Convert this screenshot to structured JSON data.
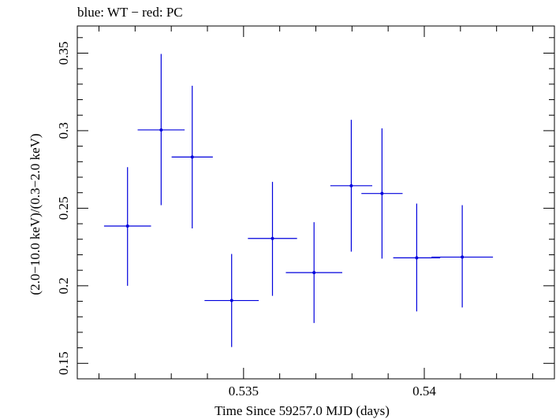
{
  "chart_data": {
    "type": "scatter",
    "title": "blue: WT − red: PC",
    "xlabel": "Time Since 59257.0 MJD (days)",
    "ylabel": "(2.0−10.0 keV)/(0.3−2.0 keV)",
    "xlim": [
      0.5304,
      0.5436
    ],
    "ylim": [
      0.14,
      0.3675
    ],
    "xticks": [
      {
        "value": 0.535,
        "label": "0.535"
      },
      {
        "value": 0.54,
        "label": "0.54"
      }
    ],
    "yticks": [
      {
        "value": 0.15,
        "label": "0.15"
      },
      {
        "value": 0.2,
        "label": "0.2"
      },
      {
        "value": 0.25,
        "label": "0.25"
      },
      {
        "value": 0.3,
        "label": "0.3"
      },
      {
        "value": 0.35,
        "label": "0.35"
      }
    ],
    "series": [
      {
        "name": "WT",
        "color": "#0000dd",
        "points": [
          {
            "x": 0.53179,
            "xerr": 0.00065,
            "y": 0.2385,
            "yerr_low": 0.0385,
            "yerr_high": 0.038
          },
          {
            "x": 0.53272,
            "xerr": 0.00065,
            "y": 0.3005,
            "yerr_low": 0.0485,
            "yerr_high": 0.049
          },
          {
            "x": 0.53358,
            "xerr": 0.00057,
            "y": 0.283,
            "yerr_low": 0.046,
            "yerr_high": 0.046
          },
          {
            "x": 0.53467,
            "xerr": 0.00075,
            "y": 0.1905,
            "yerr_low": 0.03,
            "yerr_high": 0.03
          },
          {
            "x": 0.5358,
            "xerr": 0.00068,
            "y": 0.2305,
            "yerr_low": 0.037,
            "yerr_high": 0.0365
          },
          {
            "x": 0.53695,
            "xerr": 0.00078,
            "y": 0.2085,
            "yerr_low": 0.0325,
            "yerr_high": 0.0325
          },
          {
            "x": 0.53798,
            "xerr": 0.00058,
            "y": 0.2645,
            "yerr_low": 0.0425,
            "yerr_high": 0.0425
          },
          {
            "x": 0.53883,
            "xerr": 0.00057,
            "y": 0.2595,
            "yerr_low": 0.042,
            "yerr_high": 0.042
          },
          {
            "x": 0.53979,
            "xerr": 0.00065,
            "y": 0.218,
            "yerr_low": 0.0345,
            "yerr_high": 0.035
          },
          {
            "x": 0.54105,
            "xerr": 0.00085,
            "y": 0.2185,
            "yerr_low": 0.0325,
            "yerr_high": 0.0335
          }
        ]
      },
      {
        "name": "PC",
        "color": "#dd0000",
        "points": []
      }
    ]
  }
}
